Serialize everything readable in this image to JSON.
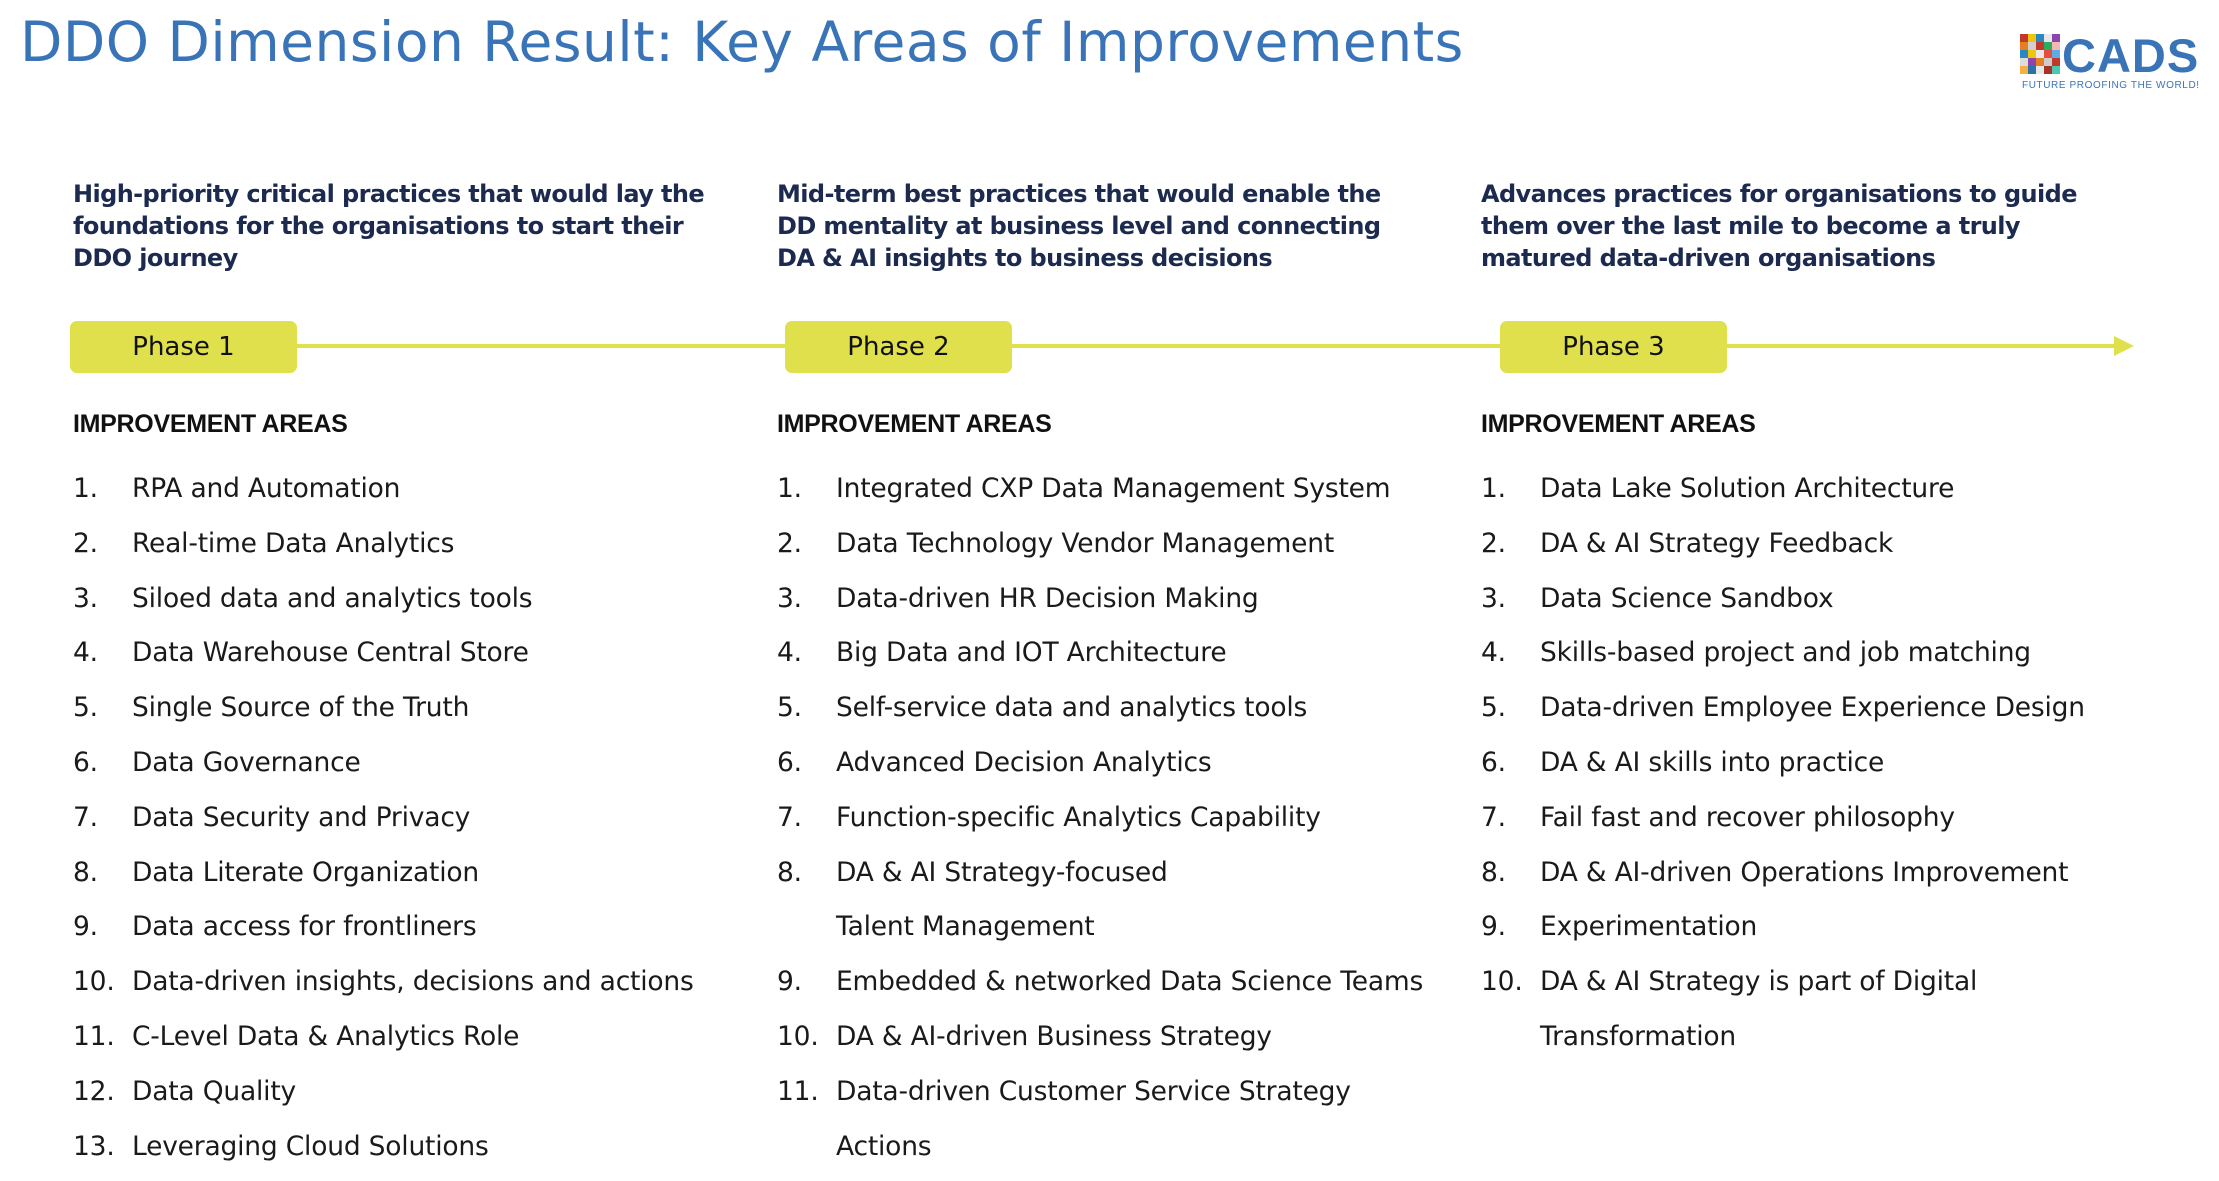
{
  "title": "DDO Dimension Result: Key Areas of Improvements",
  "logo": {
    "word": "CADS",
    "tagline": "FUTURE PROOFING THE WORLD!"
  },
  "colors": {
    "title": "#3a74b8",
    "accent": "#dfe04c",
    "description": "#1b2a4e"
  },
  "phases": [
    {
      "label": "Phase 1",
      "description": "High-priority critical practices that would lay the foundations for the organisations to start their DDO journey",
      "areas_heading": "IMPROVEMENT AREAS",
      "items": [
        {
          "num": "1.",
          "text": "RPA and Automation"
        },
        {
          "num": "2.",
          "text": "Real-time Data Analytics"
        },
        {
          "num": "3.",
          "text": "Siloed data and analytics tools"
        },
        {
          "num": "4.",
          "text": "Data Warehouse Central Store"
        },
        {
          "num": "5.",
          "text": "Single Source of the Truth"
        },
        {
          "num": "6.",
          "text": "Data Governance"
        },
        {
          "num": "7.",
          "text": "Data Security and Privacy"
        },
        {
          "num": "8.",
          "text": "Data Literate Organization"
        },
        {
          "num": "9.",
          "text": "Data access for frontliners"
        },
        {
          "num": "10.",
          "text": "Data-driven insights, decisions and actions"
        },
        {
          "num": "11.",
          "text": "C-Level Data & Analytics Role"
        },
        {
          "num": "12.",
          "text": "Data Quality"
        },
        {
          "num": "13.",
          "text": "Leveraging Cloud Solutions"
        }
      ]
    },
    {
      "label": "Phase 2",
      "description": "Mid-term best practices that would enable the DD mentality at business level and connecting DA & AI insights to business decisions",
      "areas_heading": "IMPROVEMENT AREAS",
      "items": [
        {
          "num": "1.",
          "text": "Integrated CXP Data Management System"
        },
        {
          "num": "2.",
          "text": "Data Technology Vendor Management"
        },
        {
          "num": "3.",
          "text": "Data-driven HR Decision Making"
        },
        {
          "num": "4.",
          "text": "Big Data and IOT Architecture"
        },
        {
          "num": "5.",
          "text": "Self-service data and analytics tools"
        },
        {
          "num": "6.",
          "text": "Advanced Decision Analytics"
        },
        {
          "num": "7.",
          "text": "Function-specific Analytics Capability"
        },
        {
          "num": "8.",
          "text": "DA & AI Strategy-focused Talent Management"
        },
        {
          "num": "9.",
          "text": "Embedded & networked Data Science Teams"
        },
        {
          "num": "10.",
          "text": "DA & AI-driven Business Strategy"
        },
        {
          "num": "11.",
          "text": "Data-driven Customer Service Strategy Actions"
        }
      ]
    },
    {
      "label": "Phase 3",
      "description": "Advances practices for organisations to guide them over the last mile to become a truly matured data-driven organisations",
      "areas_heading": "IMPROVEMENT AREAS",
      "items": [
        {
          "num": "1.",
          "text": "Data Lake Solution Architecture"
        },
        {
          "num": "2.",
          "text": "DA & AI Strategy Feedback"
        },
        {
          "num": "3.",
          "text": "Data Science Sandbox"
        },
        {
          "num": "4.",
          "text": "Skills-based project and job matching"
        },
        {
          "num": "5.",
          "text": "Data-driven Employee Experience Design"
        },
        {
          "num": "6.",
          "text": "DA & AI skills into practice"
        },
        {
          "num": "7.",
          "text": "Fail fast and recover philosophy"
        },
        {
          "num": "8.",
          "text": "DA & AI-driven Operations Improvement"
        },
        {
          "num": "9.",
          "text": "Experimentation"
        },
        {
          "num": "10.",
          "text": "DA & AI Strategy is part of Digital Transformation"
        }
      ]
    }
  ]
}
